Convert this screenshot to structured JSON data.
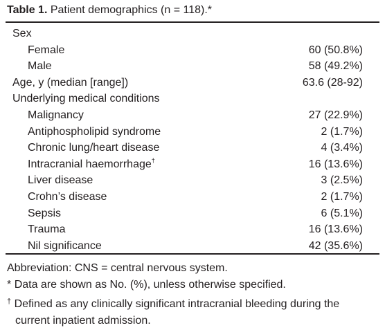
{
  "title": {
    "label": "Table 1.",
    "text": "Patient demographics (n = 118).*"
  },
  "table": {
    "rows": [
      {
        "label": "Sex",
        "rows": [
          {
            "label": "Female",
            "value": "60 (50.8%)"
          },
          {
            "label": "Male",
            "value": "58 (49.2%)"
          }
        ]
      },
      {
        "label": "Age, y (median [range])",
        "value": "63.6 (28-92)"
      },
      {
        "label": "Underlying medical conditions",
        "rows": [
          {
            "label": "Malignancy",
            "value": "27 (22.9%)"
          },
          {
            "label": "Antiphospholipid syndrome",
            "value": "2 (1.7%)"
          },
          {
            "label": "Chronic lung/heart disease",
            "value": "4 (3.4%)"
          },
          {
            "label": "Intracranial haemorrhage",
            "note": "†",
            "value": "16 (13.6%)"
          },
          {
            "label": "Liver disease",
            "value": "3 (2.5%)"
          },
          {
            "label": "Crohn’s disease",
            "value": "2 (1.7%)"
          },
          {
            "label": "Sepsis",
            "value": "6 (5.1%)"
          },
          {
            "label": "Trauma",
            "value": "16 (13.6%)"
          },
          {
            "label": "Nil significance",
            "value": "42 (35.6%)"
          }
        ]
      }
    ]
  },
  "footnotes": [
    {
      "text": "Abbreviation: CNS = central nervous system."
    },
    {
      "mark": "*",
      "text": "Data are shown as No. (%), unless otherwise specified."
    },
    {
      "mark": "†",
      "text": "Defined as any clinically significant intracranial bleeding during the current inpatient admission."
    }
  ]
}
